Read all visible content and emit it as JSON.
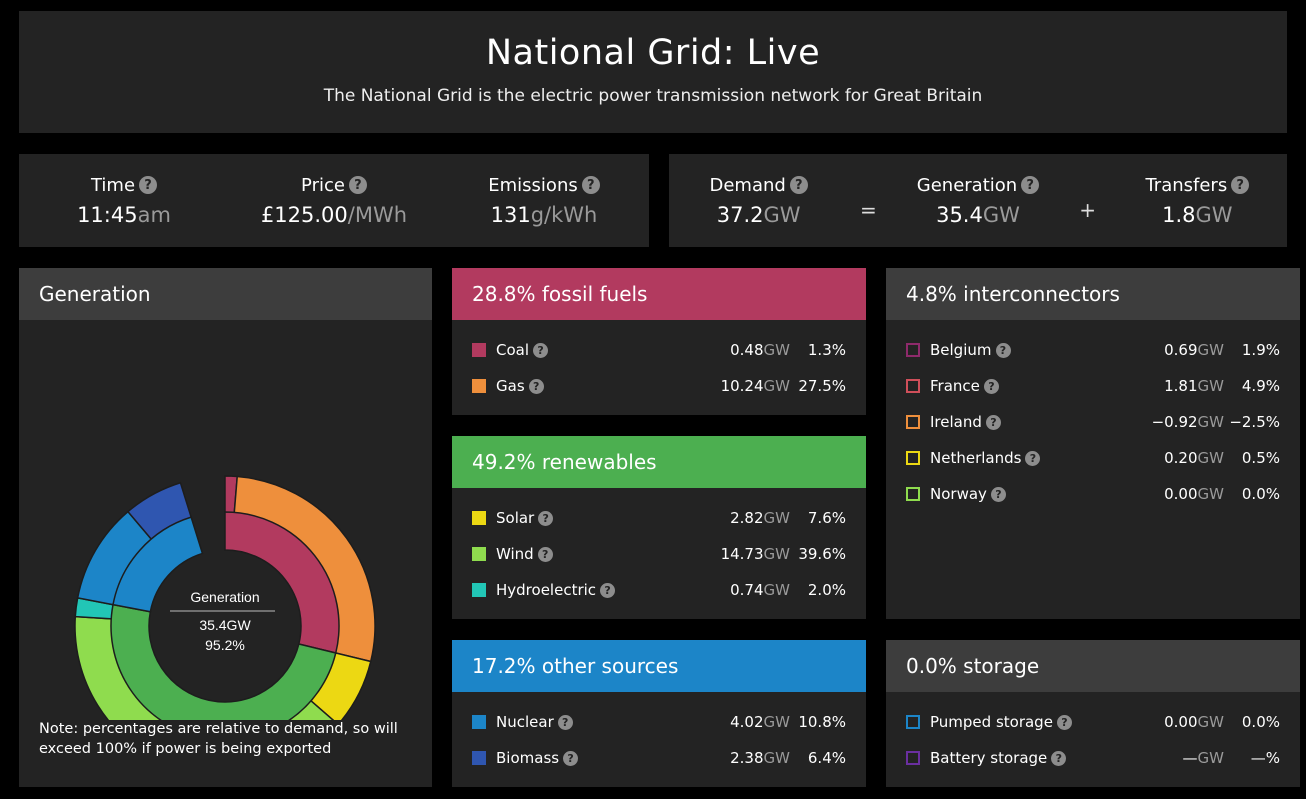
{
  "header": {
    "title": "National Grid: Live",
    "subtitle": "The National Grid is the electric power transmission network for Great Britain"
  },
  "stats": {
    "time": {
      "label": "Time",
      "value": "11:45",
      "unit": "am"
    },
    "price": {
      "label": "Price",
      "value": "£125.00",
      "unit": "/MWh"
    },
    "emissions": {
      "label": "Emissions",
      "value": "131",
      "unit": "g/kWh"
    }
  },
  "balance": {
    "demand": {
      "label": "Demand",
      "value": "37.2",
      "unit": "GW"
    },
    "eq": "=",
    "generation": {
      "label": "Generation",
      "value": "35.4",
      "unit": "GW"
    },
    "plus": "+",
    "transfers": {
      "label": "Transfers",
      "value": "1.8",
      "unit": "GW"
    }
  },
  "help_glyph": "?",
  "generation_panel": {
    "title": "Generation",
    "center_label": "Generation",
    "center_gw": "35.4GW",
    "center_pct": "95.2%",
    "note": "Note: percentages are relative to demand, so will exceed 100% if power is being exported"
  },
  "chart_data": {
    "type": "pie",
    "title": "Generation",
    "inner_ring": {
      "categories": [
        "fossil fuels",
        "renewables",
        "other sources"
      ],
      "values": [
        28.8,
        49.2,
        17.2
      ],
      "colors": [
        "#b23a5f",
        "#4caf50",
        "#1c85c8"
      ]
    },
    "outer_ring": {
      "categories": [
        "Coal",
        "Gas",
        "Solar",
        "Wind",
        "Hydroelectric",
        "Nuclear",
        "Biomass"
      ],
      "values": [
        1.3,
        27.5,
        7.6,
        39.6,
        2.0,
        10.8,
        6.4
      ],
      "colors": [
        "#b23a5f",
        "#ee8f3c",
        "#ecd813",
        "#8fdc4e",
        "#22c6b6",
        "#1c85c8",
        "#2f56b0"
      ]
    }
  },
  "fossil": {
    "title": "28.8% fossil fuels",
    "color": "#b23a5f",
    "rows": [
      {
        "name": "Coal",
        "gw": "0.48",
        "unit": "GW",
        "pct": "1.3%",
        "color": "#b23a5f"
      },
      {
        "name": "Gas",
        "gw": "10.24",
        "unit": "GW",
        "pct": "27.5%",
        "color": "#ee8f3c"
      }
    ]
  },
  "renewables": {
    "title": "49.2% renewables",
    "color": "#4caf50",
    "rows": [
      {
        "name": "Solar",
        "gw": "2.82",
        "unit": "GW",
        "pct": "7.6%",
        "color": "#ecd813"
      },
      {
        "name": "Wind",
        "gw": "14.73",
        "unit": "GW",
        "pct": "39.6%",
        "color": "#8fdc4e"
      },
      {
        "name": "Hydroelectric",
        "gw": "0.74",
        "unit": "GW",
        "pct": "2.0%",
        "color": "#22c6b6"
      }
    ]
  },
  "other": {
    "title": "17.2% other sources",
    "color": "#1c85c8",
    "rows": [
      {
        "name": "Nuclear",
        "gw": "4.02",
        "unit": "GW",
        "pct": "10.8%",
        "color": "#1c85c8"
      },
      {
        "name": "Biomass",
        "gw": "2.38",
        "unit": "GW",
        "pct": "6.4%",
        "color": "#2f56b0"
      }
    ]
  },
  "interconnectors": {
    "title": "4.8% interconnectors",
    "color": "#3d3d3d",
    "rows": [
      {
        "name": "Belgium",
        "gw": "0.69",
        "unit": "GW",
        "pct": "1.9%",
        "color": "#8e2a6b"
      },
      {
        "name": "France",
        "gw": "1.81",
        "unit": "GW",
        "pct": "4.9%",
        "color": "#cf4f5a"
      },
      {
        "name": "Ireland",
        "gw": "−0.92",
        "unit": "GW",
        "pct": "−2.5%",
        "color": "#ee8f3c"
      },
      {
        "name": "Netherlands",
        "gw": "0.20",
        "unit": "GW",
        "pct": "0.5%",
        "color": "#ecd813"
      },
      {
        "name": "Norway",
        "gw": "0.00",
        "unit": "GW",
        "pct": "0.0%",
        "color": "#8fdc4e"
      }
    ]
  },
  "storage": {
    "title": "0.0% storage",
    "color": "#3d3d3d",
    "rows": [
      {
        "name": "Pumped storage",
        "gw": "0.00",
        "unit": "GW",
        "pct": "0.0%",
        "color": "#1c85c8"
      },
      {
        "name": "Battery storage",
        "gw": "—",
        "unit": "GW",
        "pct": "—%",
        "color": "#6a2fa0"
      }
    ]
  }
}
